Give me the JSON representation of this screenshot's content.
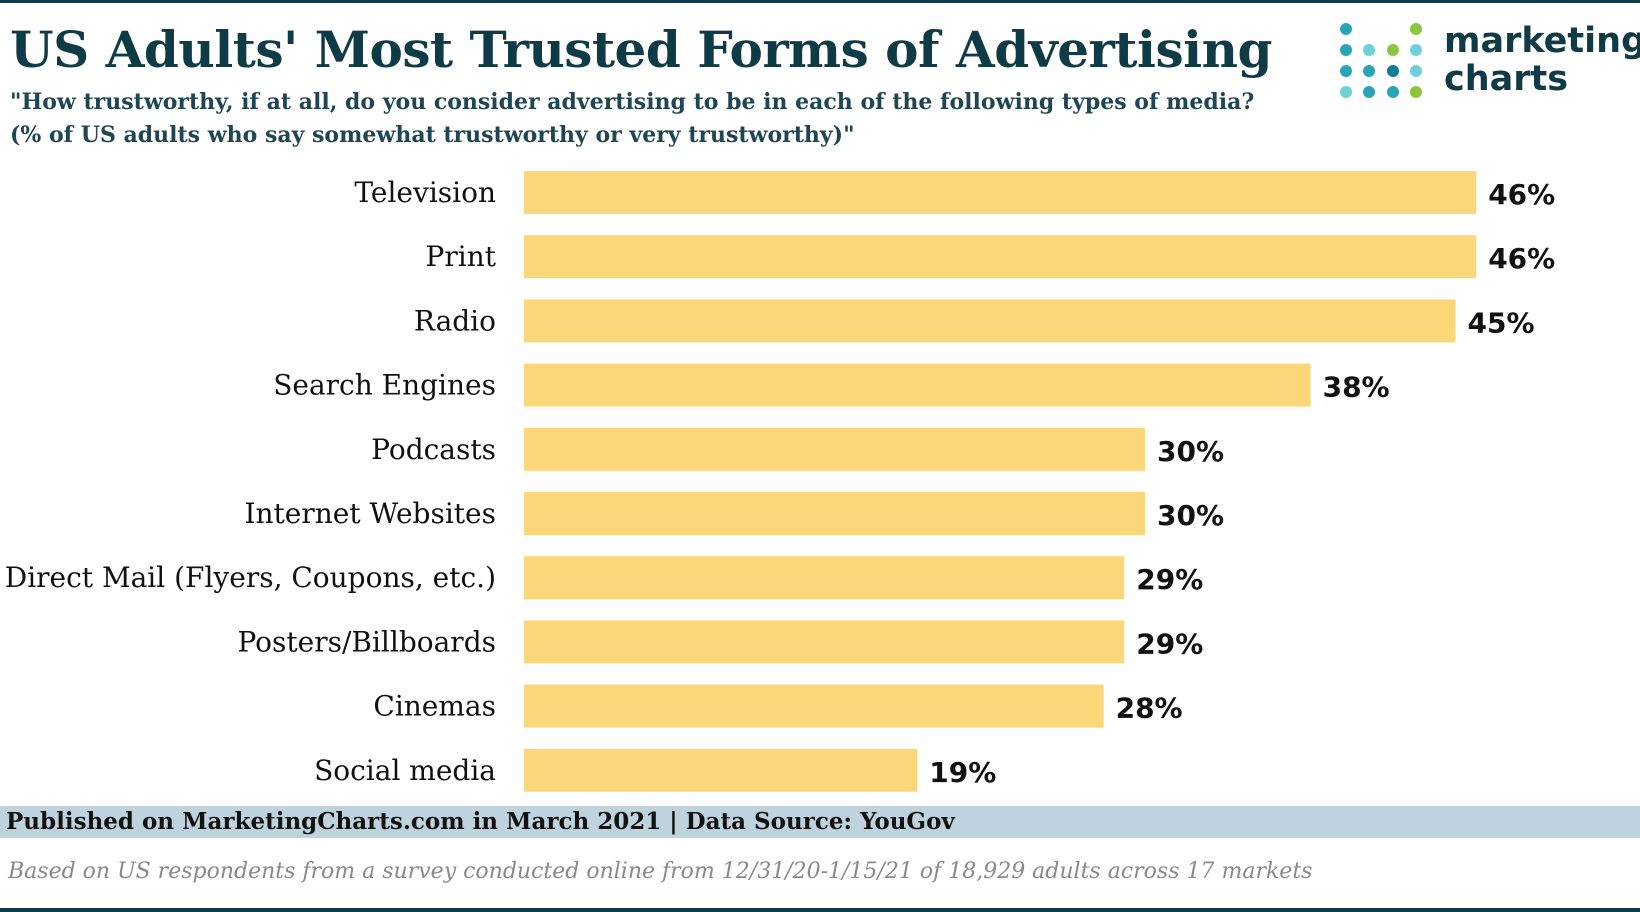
{
  "header": {
    "title": "US Adults' Most Trusted Forms of Advertising",
    "subtitle_line1": "\"How trustworthy, if at all, do you consider advertising to be in each of the following types of media?",
    "subtitle_line2": "(% of US adults who say somewhat trustworthy or very trustworthy)\""
  },
  "logo": {
    "line1": "marketing",
    "line2": "charts",
    "colors": {
      "dark": "#0f3b47",
      "teal": "#2aa5b8",
      "light_teal": "#6fd1d8",
      "green": "#8cc63f"
    }
  },
  "chart_data": {
    "type": "bar",
    "orientation": "horizontal",
    "categories": [
      "Television",
      "Print",
      "Radio",
      "Search Engines",
      "Podcasts",
      "Internet Websites",
      "Direct Mail (Flyers, Coupons, etc.)",
      "Posters/Billboards",
      "Cinemas",
      "Social media"
    ],
    "values": [
      46,
      46,
      45,
      38,
      30,
      30,
      29,
      29,
      28,
      19
    ],
    "value_labels": [
      "46%",
      "46%",
      "45%",
      "38%",
      "30%",
      "30%",
      "29%",
      "29%",
      "28%",
      "19%"
    ],
    "unit": "%",
    "xlim": [
      0,
      50
    ],
    "bar_color": "#fcd779",
    "grid": false,
    "legend": "none"
  },
  "footer": {
    "published": "Published on MarketingCharts.com in March 2021 | Data Source: YouGov",
    "note": "Based on US respondents from a survey conducted online from 12/31/20-1/15/21 of 18,929 adults across 17 markets"
  }
}
